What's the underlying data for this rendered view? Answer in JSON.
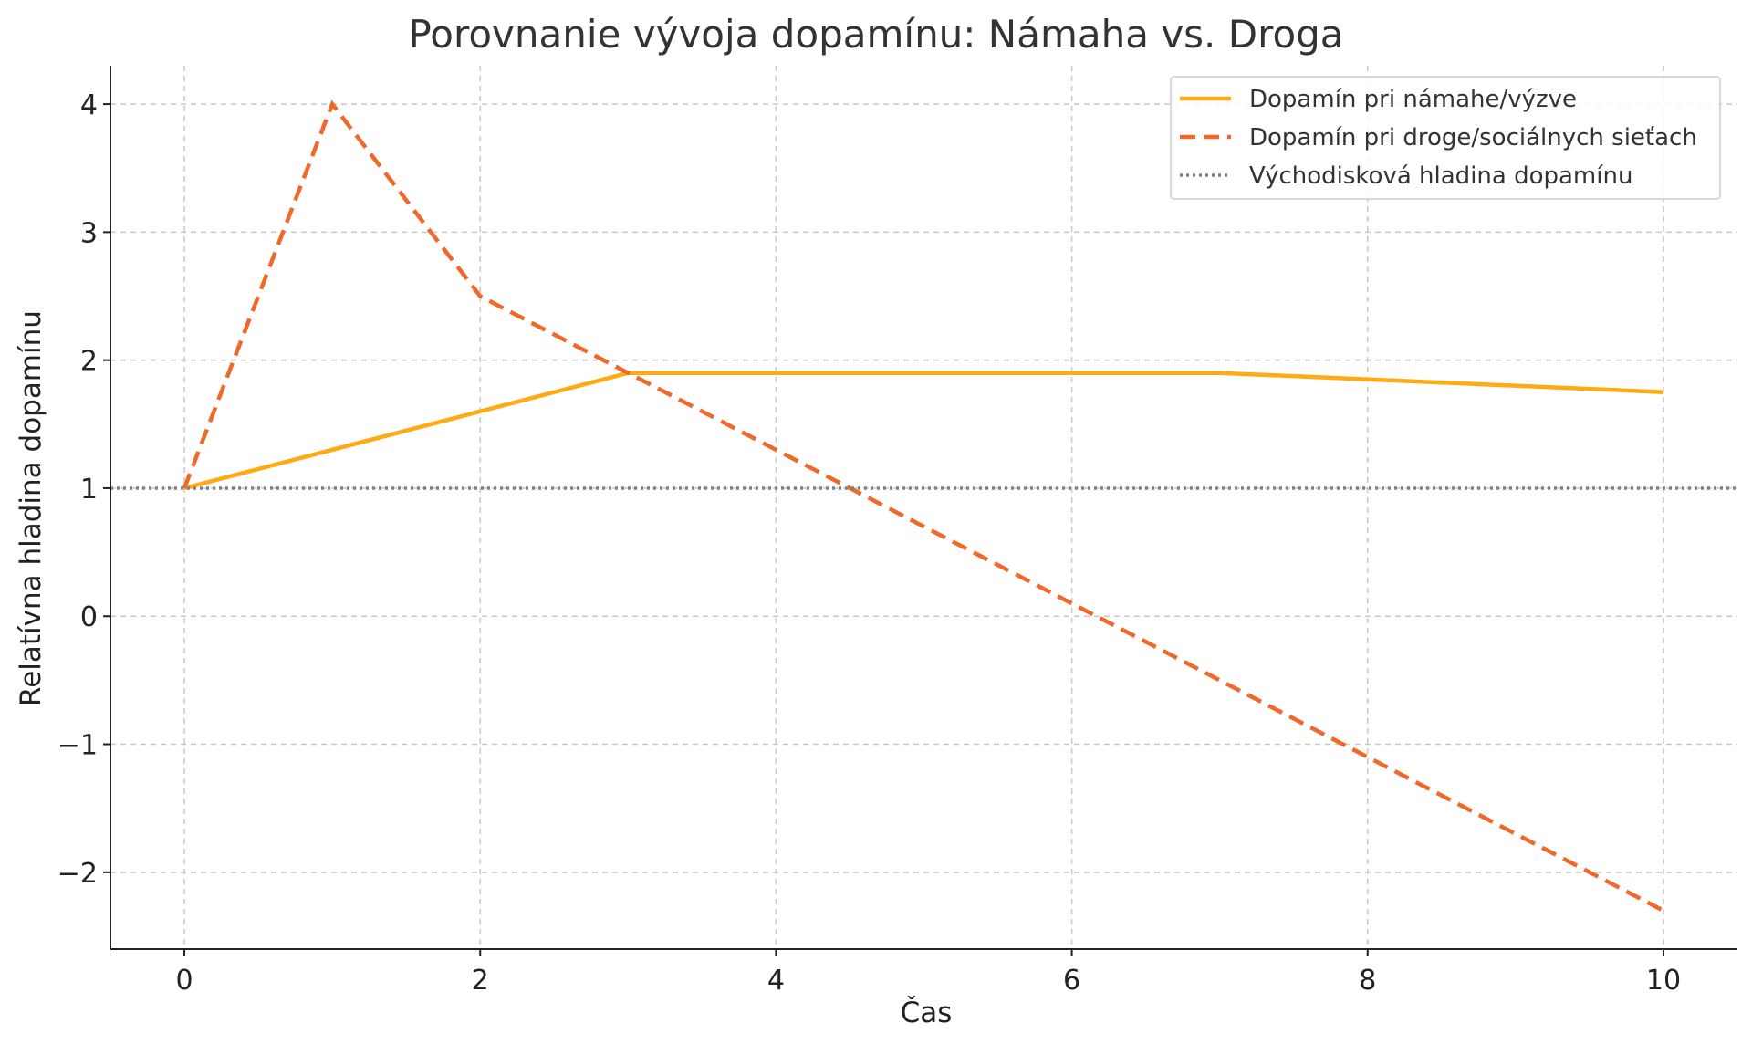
{
  "chart_data": {
    "type": "line",
    "title": "Porovnanie vývoja dopamínu: Námaha vs. Droga",
    "xlabel": "Čas",
    "ylabel": "Relatívna hladina dopamínu",
    "xlim": [
      -0.5,
      10.5
    ],
    "ylim": [
      -2.6,
      4.3
    ],
    "xticks": [
      0,
      2,
      4,
      6,
      8,
      10
    ],
    "yticks": [
      -2,
      -1,
      0,
      1,
      2,
      3,
      4
    ],
    "ytick_labels": [
      "−2",
      "−1",
      "0",
      "1",
      "2",
      "3",
      "4"
    ],
    "grid": true,
    "legend_position": "top-right",
    "series": [
      {
        "name": "Dopamín pri námahe/výzve",
        "style": "solid",
        "color": "#FFA913",
        "x": [
          0,
          2,
          3,
          7,
          10
        ],
        "y": [
          1.0,
          1.6,
          1.9,
          1.9,
          1.75
        ]
      },
      {
        "name": "Dopamín pri droge/sociálnych sieťach",
        "style": "dashed",
        "color": "#F0692A",
        "x": [
          0,
          1,
          2,
          10
        ],
        "y": [
          1.0,
          4.0,
          2.5,
          -2.3
        ]
      },
      {
        "name": "Východisková hladina dopamínu",
        "style": "dotted",
        "color": "#808080",
        "x": [
          -0.5,
          10.5
        ],
        "y": [
          1,
          1
        ]
      }
    ]
  }
}
